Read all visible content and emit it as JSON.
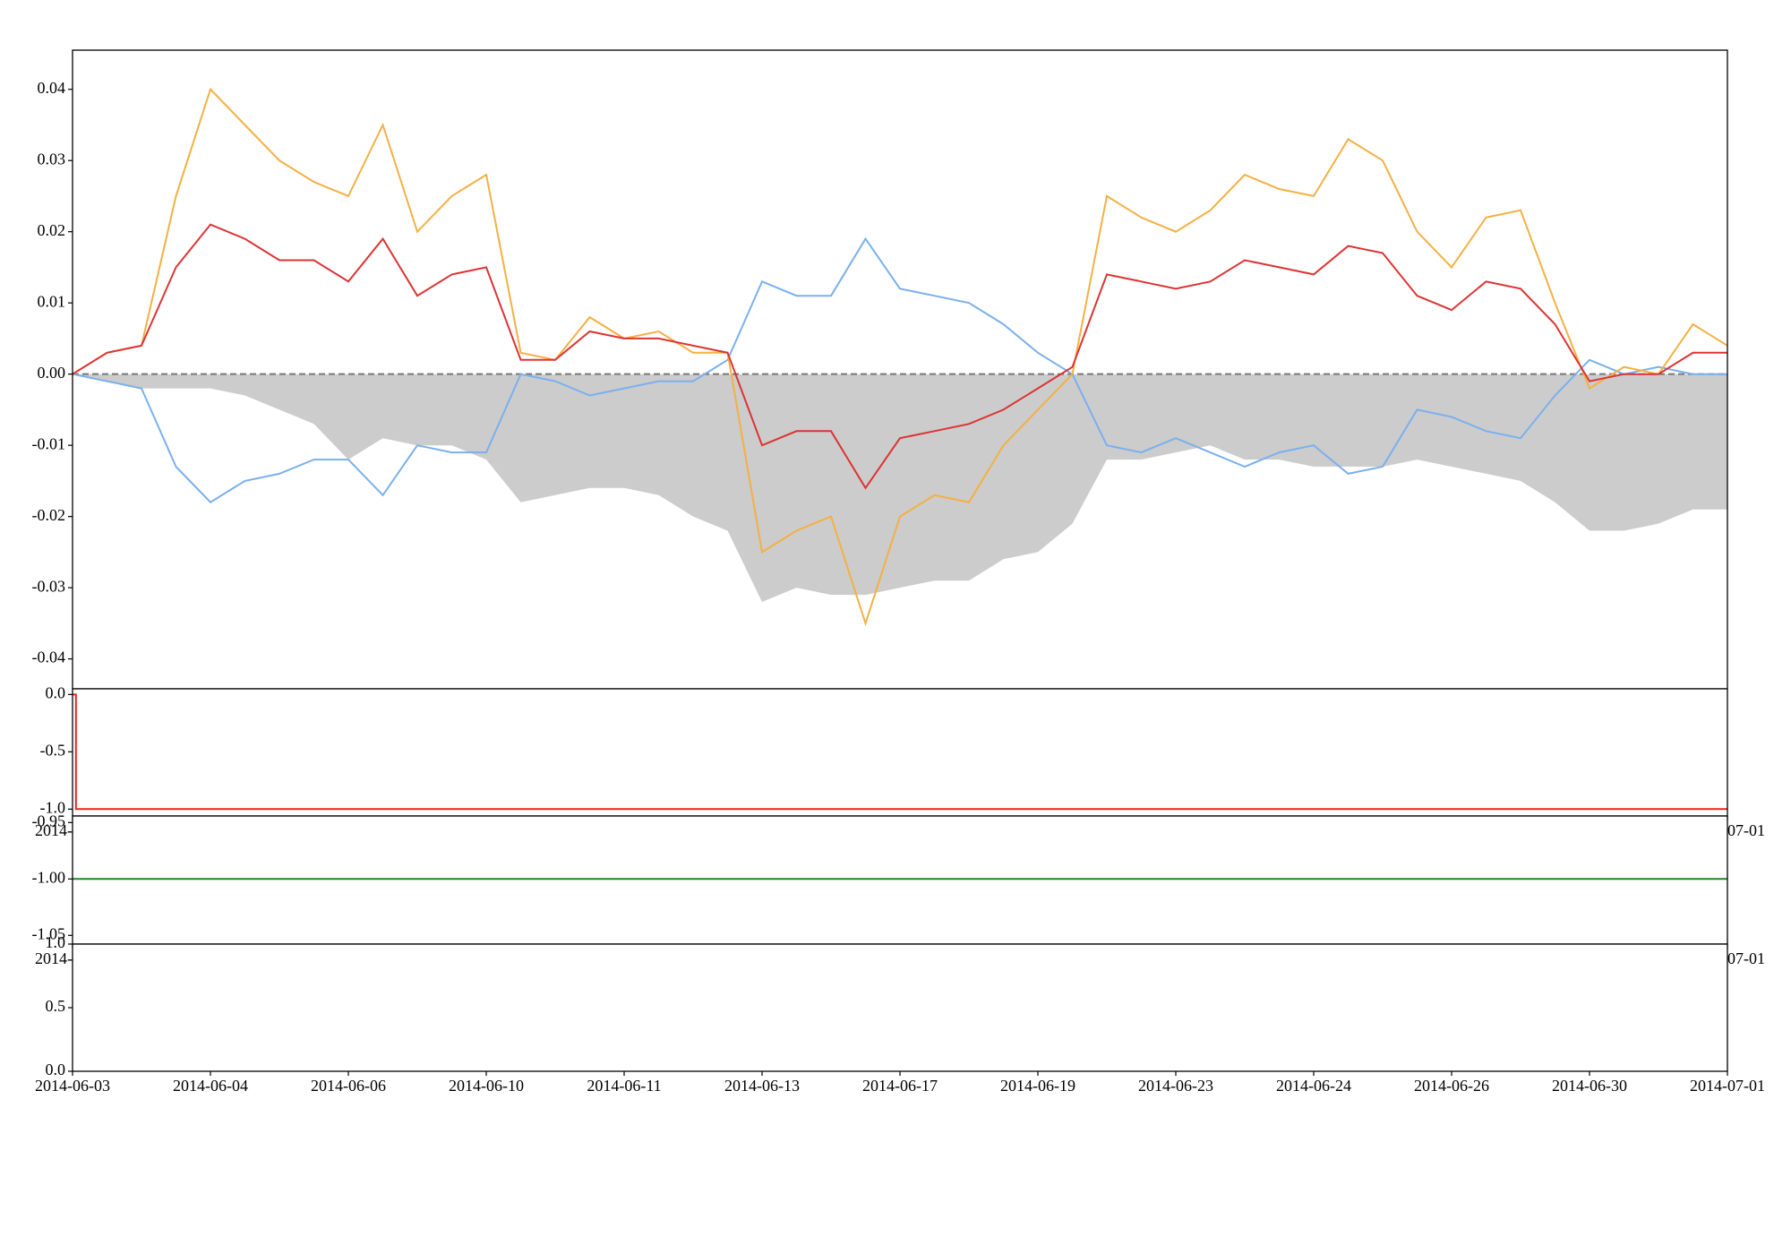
{
  "chart_data": [
    {
      "type": "line",
      "x": [
        0,
        0.25,
        0.5,
        0.75,
        1,
        1.25,
        1.5,
        1.75,
        2,
        2.25,
        2.5,
        2.75,
        3,
        3.25,
        3.5,
        3.75,
        4,
        4.25,
        4.5,
        4.75,
        5,
        5.25,
        5.5,
        5.75,
        6,
        6.25,
        6.5,
        6.75,
        7,
        7.25,
        7.5,
        7.75,
        8,
        8.25,
        8.5,
        8.75,
        9,
        9.25,
        9.5,
        9.75,
        10,
        10.25,
        10.5,
        10.75,
        11,
        11.25,
        11.5,
        11.75,
        12
      ],
      "xlim": [
        0,
        12
      ],
      "ylim": [
        -0.0442,
        0.0455
      ],
      "yticks": [
        -0.04,
        -0.03,
        -0.02,
        -0.01,
        {
          "value": 0,
          "label": "0.00"
        },
        0.01,
        0.02,
        0.03,
        0.04
      ],
      "hline": 0,
      "series": [
        {
          "color": "#cccccc",
          "fill": true,
          "values": [
            0,
            -0.001,
            -0.002,
            -0.002,
            -0.002,
            -0.003,
            -0.005,
            -0.007,
            -0.012,
            -0.009,
            -0.01,
            -0.01,
            -0.012,
            -0.018,
            -0.017,
            -0.016,
            -0.016,
            -0.017,
            -0.02,
            -0.022,
            -0.032,
            -0.03,
            -0.031,
            -0.031,
            -0.03,
            -0.029,
            -0.029,
            -0.026,
            -0.025,
            -0.021,
            -0.012,
            -0.012,
            -0.011,
            -0.01,
            -0.012,
            -0.012,
            -0.013,
            -0.013,
            -0.013,
            -0.012,
            -0.013,
            -0.014,
            -0.015,
            -0.018,
            -0.022,
            -0.022,
            -0.021,
            -0.019,
            -0.019
          ]
        },
        {
          "color": "#7ab0ee",
          "values": [
            0,
            -0.001,
            -0.002,
            -0.013,
            -0.018,
            -0.015,
            -0.014,
            -0.012,
            -0.012,
            -0.017,
            -0.01,
            -0.011,
            -0.011,
            0,
            -0.001,
            -0.003,
            -0.002,
            -0.001,
            -0.001,
            0.002,
            0.013,
            0.011,
            0.011,
            0.019,
            0.012,
            0.011,
            0.01,
            0.007,
            0.003,
            0,
            -0.01,
            -0.011,
            -0.009,
            -0.011,
            -0.013,
            -0.011,
            -0.01,
            -0.014,
            -0.013,
            -0.005,
            -0.006,
            -0.008,
            -0.009,
            -0.003,
            0.002,
            0,
            0.001,
            0,
            0
          ]
        },
        {
          "color": "#f4b042",
          "values": [
            0,
            0.003,
            0.004,
            0.025,
            0.04,
            0.035,
            0.03,
            0.027,
            0.025,
            0.035,
            0.02,
            0.025,
            0.028,
            0.003,
            0.002,
            0.008,
            0.005,
            0.006,
            0.003,
            0.003,
            -0.025,
            -0.022,
            -0.02,
            -0.035,
            -0.02,
            -0.017,
            -0.018,
            -0.01,
            -0.005,
            0,
            0.025,
            0.022,
            0.02,
            0.023,
            0.028,
            0.026,
            0.025,
            0.033,
            0.03,
            0.02,
            0.015,
            0.022,
            0.023,
            0.01,
            -0.002,
            0.001,
            0,
            0.007,
            0.004
          ]
        },
        {
          "color": "#dd3333",
          "values": [
            0,
            0.003,
            0.004,
            0.015,
            0.021,
            0.019,
            0.016,
            0.016,
            0.013,
            0.019,
            0.011,
            0.014,
            0.015,
            0.002,
            0.002,
            0.006,
            0.005,
            0.005,
            0.004,
            0.003,
            -0.01,
            -0.008,
            -0.008,
            -0.016,
            -0.009,
            -0.008,
            -0.007,
            -0.005,
            -0.002,
            0.001,
            0.014,
            0.013,
            0.012,
            0.013,
            0.016,
            0.015,
            0.014,
            0.018,
            0.017,
            0.011,
            0.009,
            0.013,
            0.012,
            0.007,
            -0.001,
            0,
            0,
            0.003,
            0.003
          ]
        }
      ]
    },
    {
      "type": "line",
      "x": [
        0,
        0.025,
        0.025,
        12
      ],
      "xlim": [
        0,
        12
      ],
      "ylim": [
        -1.06,
        0.05
      ],
      "yticks": [
        {
          "value": -1,
          "label": "-1.0"
        },
        -0.5,
        {
          "value": 0,
          "label": "0.0"
        }
      ],
      "xticks": [
        {
          "value": 0,
          "label": "2014-06-03"
        },
        {
          "value": 12,
          "label": "2014-07-01"
        }
      ],
      "series": [
        {
          "color": "#ee2222",
          "values": [
            0,
            0,
            -1,
            -1
          ]
        }
      ]
    },
    {
      "type": "line",
      "x": [
        0,
        12
      ],
      "xlim": [
        0,
        12
      ],
      "ylim": [
        -1.0577,
        -0.9442
      ],
      "yticks": [
        -1.05,
        {
          "value": -1,
          "label": "-1.00"
        },
        -0.95
      ],
      "xticks": [
        {
          "value": 0,
          "label": "2014-06-03"
        },
        {
          "value": 12,
          "label": "2014-07-01"
        }
      ],
      "series": [
        {
          "color": "#228822",
          "values": [
            -1,
            -1
          ]
        }
      ]
    },
    {
      "type": "line",
      "x": [],
      "xlim": [
        0,
        12
      ],
      "ylim": [
        0,
        1
      ],
      "yticks": [
        {
          "value": 0,
          "label": "0.0"
        },
        0.5,
        {
          "value": 1,
          "label": "1.0"
        }
      ],
      "xticks": [
        {
          "value": 0,
          "label": "2014-06-03"
        },
        {
          "value": 1,
          "label": "2014-06-04"
        },
        {
          "value": 2,
          "label": "2014-06-06"
        },
        {
          "value": 3,
          "label": "2014-06-10"
        },
        {
          "value": 4,
          "label": "2014-06-11"
        },
        {
          "value": 5,
          "label": "2014-06-13"
        },
        {
          "value": 6,
          "label": "2014-06-17"
        },
        {
          "value": 7,
          "label": "2014-06-19"
        },
        {
          "value": 8,
          "label": "2014-06-23"
        },
        {
          "value": 9,
          "label": "2014-06-24"
        },
        {
          "value": 10,
          "label": "2014-06-26"
        },
        {
          "value": 11,
          "label": "2014-06-30"
        },
        {
          "value": 12,
          "label": "2014-07-01"
        }
      ],
      "series": []
    }
  ]
}
